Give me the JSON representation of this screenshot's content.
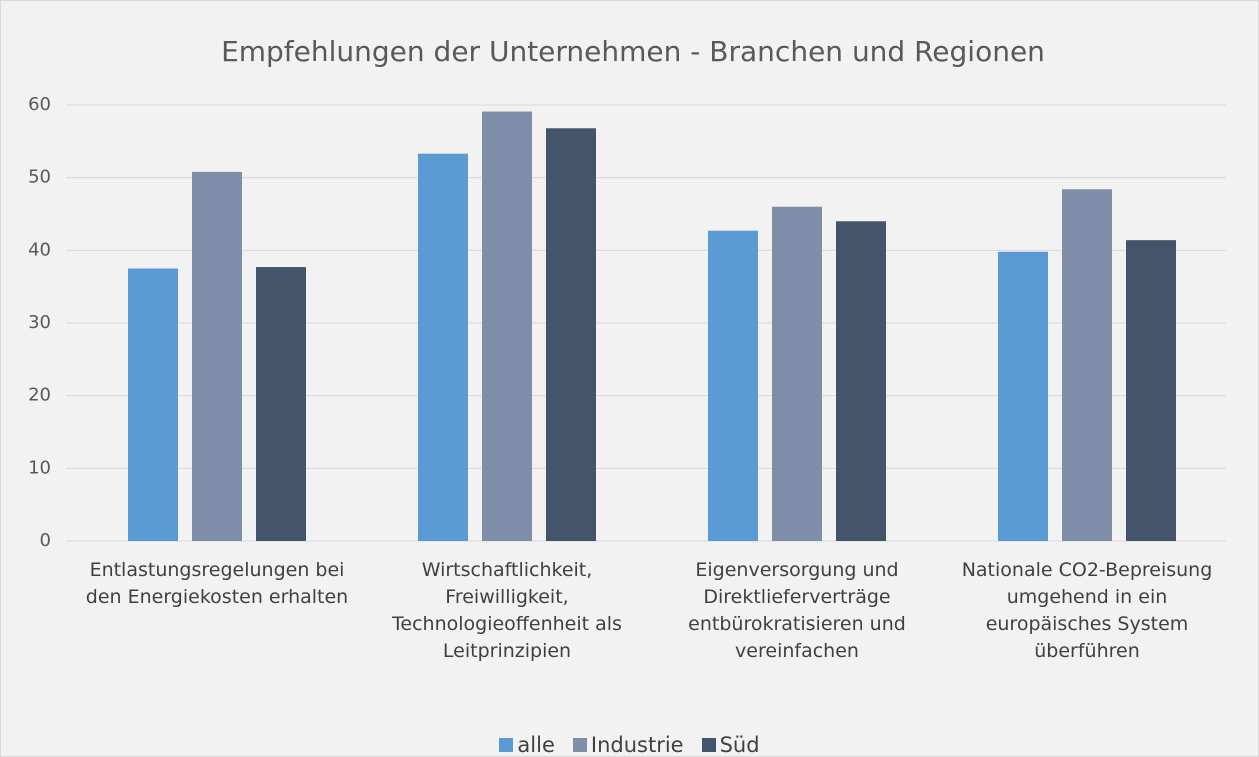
{
  "chart_data": {
    "type": "bar",
    "title": "Empfehlungen der Unternehmen - Branchen und Regionen",
    "categories": [
      "Entlastungsregelungen bei den Energiekosten erhalten",
      "Wirtschaftlichkeit, Freiwilligkeit, Technologieoffenheit als Leitprinzipien",
      "Eigenversorgung und Direktlieferverträge entbürokratisieren und vereinfachen",
      "Nationale CO2-Bepreisung umgehend in ein europäisches System überführen"
    ],
    "series": [
      {
        "name": "alle",
        "color": "#5b9bd5",
        "values": [
          37.5,
          53.3,
          42.7,
          39.8
        ]
      },
      {
        "name": "Industrie",
        "color": "#7f8fa9",
        "values": [
          50.8,
          59.1,
          46.0,
          48.4
        ]
      },
      {
        "name": "Süd",
        "color": "#44546a",
        "values": [
          37.7,
          56.8,
          44.0,
          41.4
        ]
      }
    ],
    "ylim": [
      0,
      60
    ],
    "yticks": [
      0,
      10,
      20,
      30,
      40,
      50,
      60
    ],
    "grid": true,
    "legend": "bottom"
  }
}
